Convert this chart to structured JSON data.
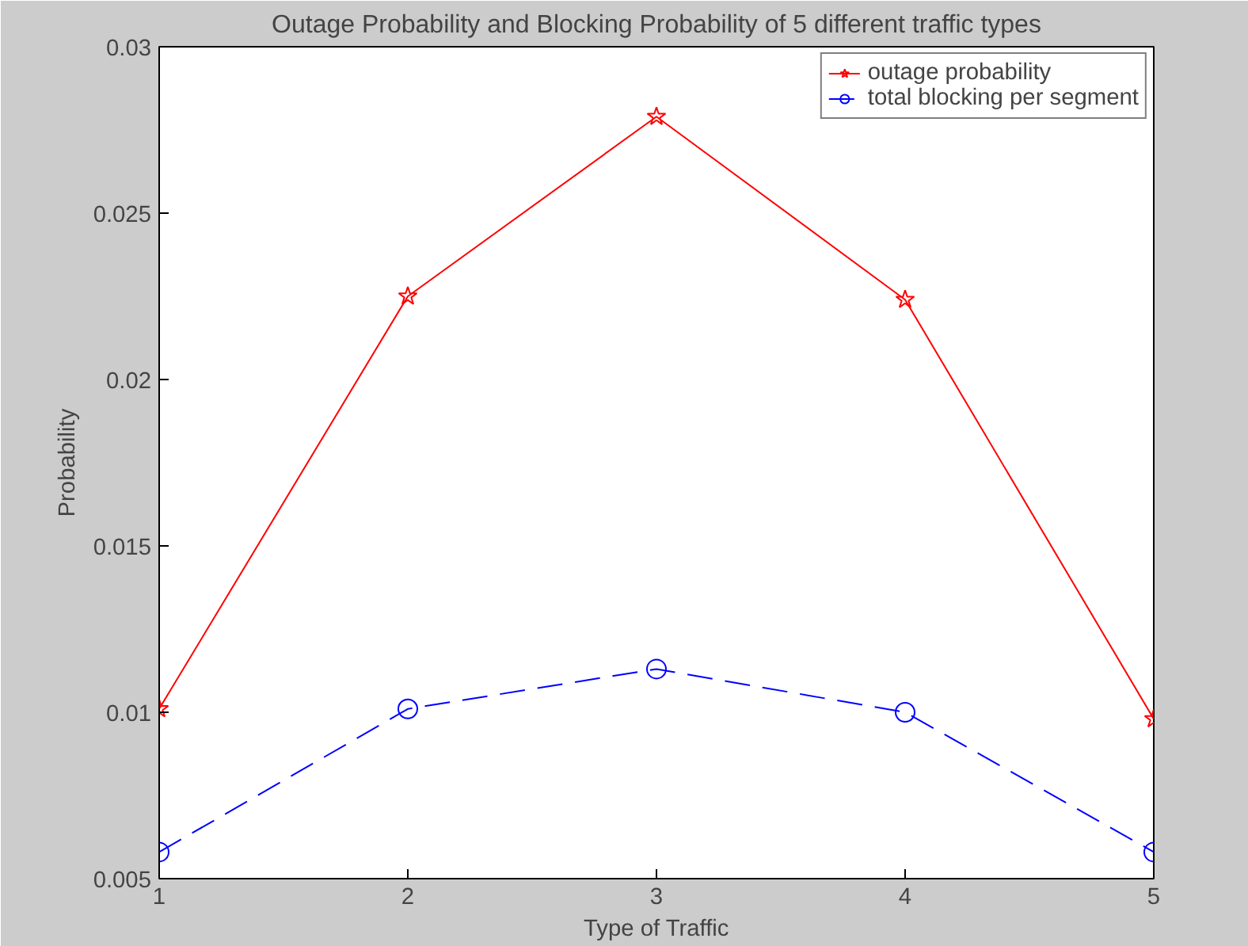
{
  "chart_data": {
    "type": "line",
    "title": "Outage Probability and Blocking Probability of 5 different traffic types",
    "xlabel": "Type of Traffic",
    "ylabel": "Probability",
    "x": [
      1,
      2,
      3,
      4,
      5
    ],
    "xlim": [
      1,
      5
    ],
    "xticks": [
      1,
      2,
      3,
      4,
      5
    ],
    "ylim": [
      0.005,
      0.03
    ],
    "yticks": [
      0.005,
      0.01,
      0.015,
      0.02,
      0.025,
      0.03
    ],
    "grid": false,
    "legend": "top right",
    "series": [
      {
        "name": "outage probability",
        "color": "#ff0000",
        "marker": "star",
        "line_style": "solid",
        "values": [
          0.0101,
          0.0225,
          0.0279,
          0.0224,
          0.0098
        ]
      },
      {
        "name": "total blocking per segment",
        "color": "#0000ff",
        "marker": "circle",
        "line_style": "dashed",
        "values": [
          0.0058,
          0.0101,
          0.0113,
          0.01,
          0.0058
        ]
      }
    ]
  }
}
